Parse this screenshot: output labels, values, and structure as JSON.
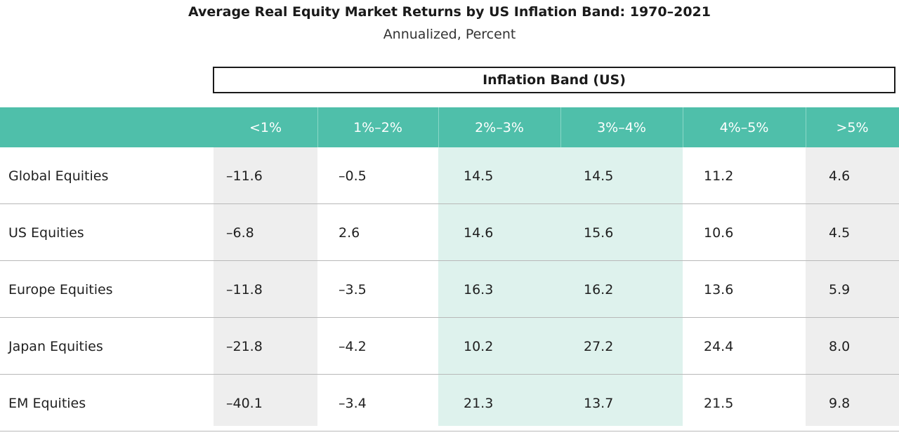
{
  "chart_data": {
    "type": "table",
    "title": "Average Real Equity Market Returns by US Inflation Band: 1970–2021",
    "subtitle": "Annualized, Percent",
    "group_header": "Inflation Band (US)",
    "columns": [
      "<1%",
      "1%–2%",
      "2%–3%",
      "3%–4%",
      "4%–5%",
      ">5%"
    ],
    "rows": [
      {
        "label": "Global Equities",
        "values": [
          "–11.6",
          "–0.5",
          "14.5",
          "14.5",
          "11.2",
          "4.6"
        ]
      },
      {
        "label": "US Equities",
        "values": [
          "–6.8",
          "2.6",
          "14.6",
          "15.6",
          "10.6",
          "4.5"
        ]
      },
      {
        "label": "Europe Equities",
        "values": [
          "–11.8",
          "–3.5",
          "16.3",
          "16.2",
          "13.6",
          "5.9"
        ]
      },
      {
        "label": "Japan Equities",
        "values": [
          "–21.8",
          "–4.2",
          "10.2",
          "27.2",
          "24.4",
          "8.0"
        ]
      },
      {
        "label": "EM Equities",
        "values": [
          "–40.1",
          "–3.4",
          "21.3",
          "13.7",
          "21.5",
          "9.8"
        ]
      }
    ],
    "colors": {
      "header": "#4fbfaa",
      "low_inflation_shade": "#eeeeee",
      "mid_inflation_shade": "#def2ed",
      "high_inflation_shade": "#eeeeee"
    }
  }
}
